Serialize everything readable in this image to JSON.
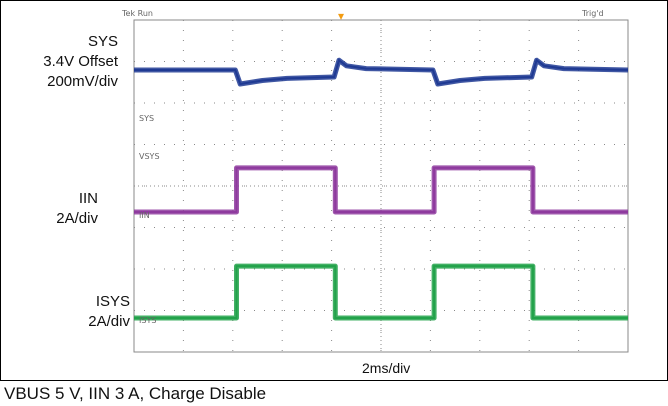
{
  "header": {
    "left": "Tek Run",
    "right": "Trig'd"
  },
  "labels": {
    "sys": {
      "name": "SYS",
      "offset": "3.4V Offset",
      "scale": "200mV/div"
    },
    "iin": {
      "name": "IIN",
      "scale": "2A/div"
    },
    "isys": {
      "name": "ISYS",
      "scale": "2A/div"
    },
    "timebase": "2ms/div"
  },
  "markers": {
    "sys": "SYS",
    "vsys": "VSYS",
    "iin": "IIN",
    "isys": "ISYS"
  },
  "caption": "VBUS 5 V, IIN 3 A, Charge Disable",
  "colors": {
    "sys": "#1f3a93",
    "iin": "#8e3a9e",
    "isys": "#22a24a",
    "grid": "#8a8a8a",
    "trigger": "#f39c12"
  },
  "chart_data": {
    "type": "line",
    "title": "",
    "xlabel": "2ms/div",
    "xlim": [
      0,
      20
    ],
    "x_unit": "ms",
    "series": [
      {
        "name": "SYS",
        "unit": "V",
        "points": [
          [
            0,
            3.4
          ],
          [
            4.1,
            3.4
          ],
          [
            4.3,
            3.2
          ],
          [
            5.2,
            3.25
          ],
          [
            6.2,
            3.28
          ],
          [
            8.1,
            3.3
          ],
          [
            8.3,
            3.54
          ],
          [
            8.6,
            3.46
          ],
          [
            9.4,
            3.42
          ],
          [
            12.1,
            3.4
          ],
          [
            12.3,
            3.2
          ],
          [
            13.2,
            3.25
          ],
          [
            14.2,
            3.28
          ],
          [
            16.1,
            3.3
          ],
          [
            16.3,
            3.54
          ],
          [
            16.6,
            3.46
          ],
          [
            17.4,
            3.42
          ],
          [
            20,
            3.4
          ]
        ]
      },
      {
        "name": "IIN",
        "unit": "A",
        "points": [
          [
            0,
            0
          ],
          [
            4.15,
            0
          ],
          [
            4.15,
            3.0
          ],
          [
            8.15,
            3.0
          ],
          [
            8.15,
            0
          ],
          [
            12.15,
            0
          ],
          [
            12.15,
            3.0
          ],
          [
            16.15,
            3.0
          ],
          [
            16.15,
            0
          ],
          [
            20,
            0
          ]
        ]
      },
      {
        "name": "ISYS",
        "unit": "A",
        "points": [
          [
            0,
            0
          ],
          [
            4.15,
            0
          ],
          [
            4.15,
            3.0
          ],
          [
            8.15,
            3.0
          ],
          [
            8.15,
            0
          ],
          [
            12.15,
            0
          ],
          [
            12.15,
            3.0
          ],
          [
            16.15,
            3.0
          ],
          [
            16.15,
            0
          ],
          [
            20,
            0
          ]
        ]
      }
    ]
  }
}
